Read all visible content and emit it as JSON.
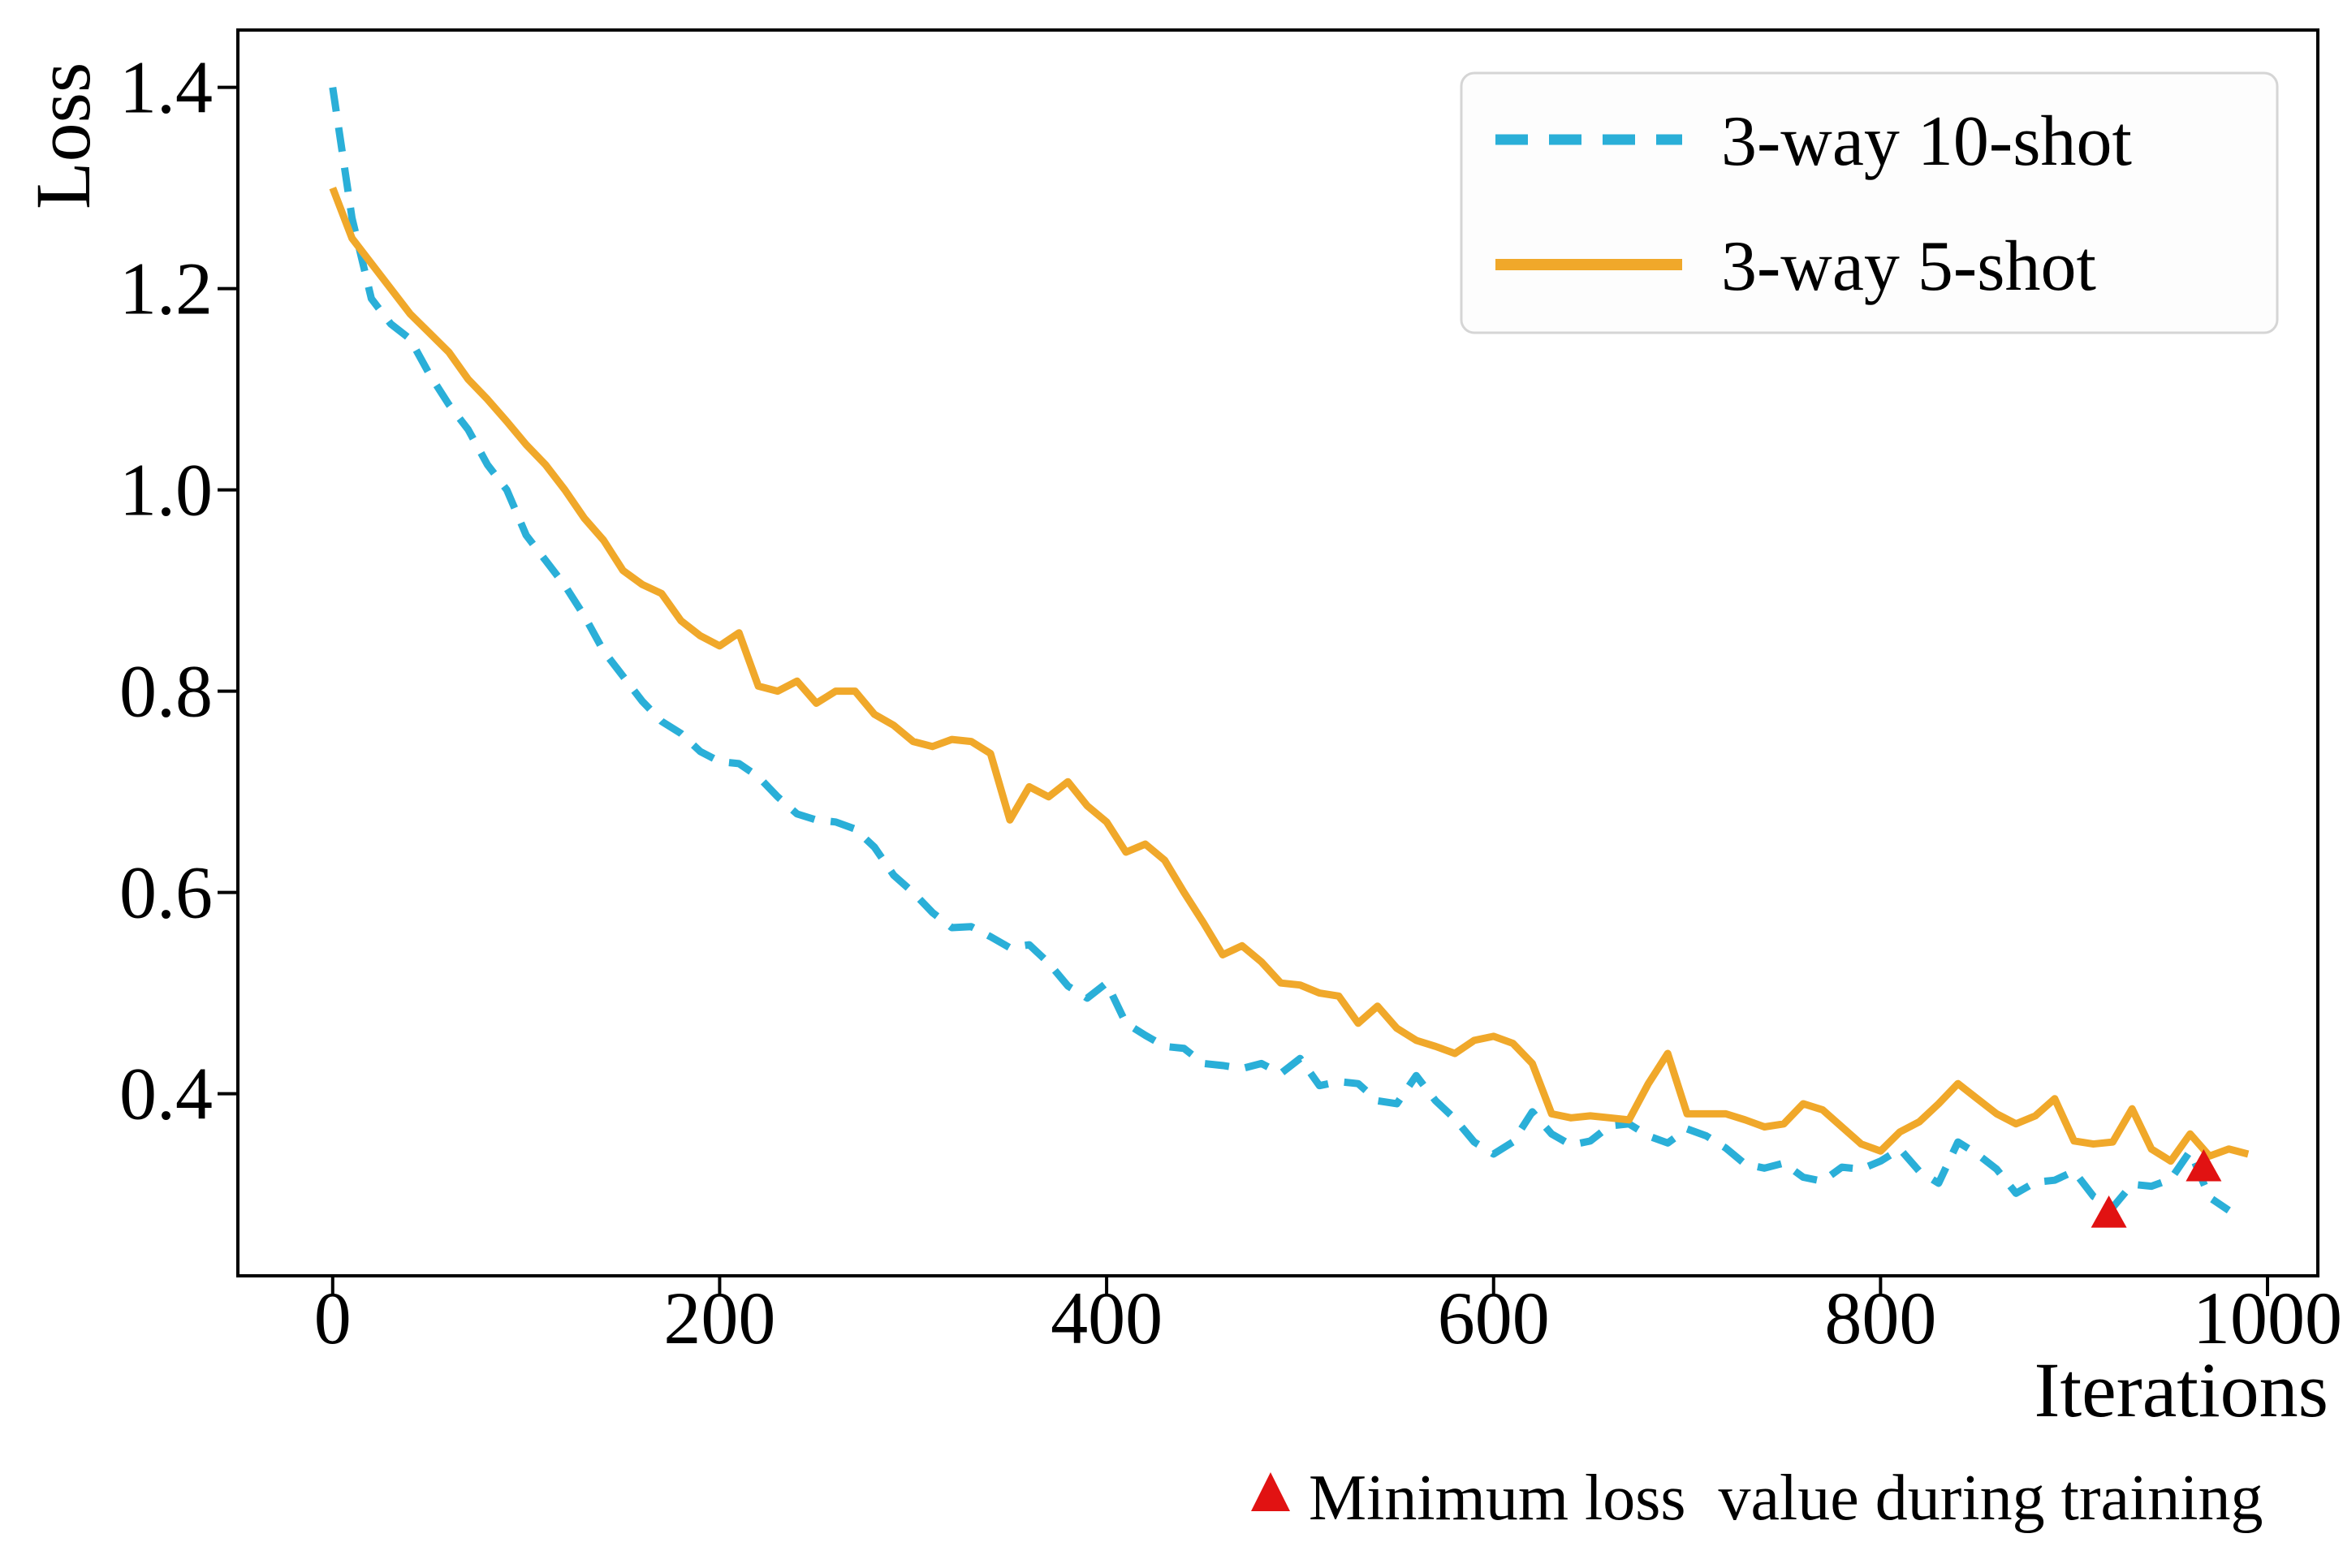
{
  "figure": {
    "background": "#ffffff",
    "frame_color": "#000000"
  },
  "chart_data": {
    "type": "line",
    "title": "",
    "xlabel": "Iterations",
    "ylabel": "Loss",
    "xlim": [
      -49,
      1026
    ],
    "ylim": [
      0.219,
      1.457
    ],
    "xticks": [
      0,
      200,
      400,
      600,
      800,
      1000
    ],
    "yticks": [
      0.4,
      0.6,
      0.8,
      1.0,
      1.2,
      1.4
    ],
    "grid": false,
    "legend_position": "upper right",
    "x": [
      0,
      10,
      20,
      30,
      40,
      50,
      60,
      70,
      80,
      90,
      100,
      110,
      120,
      130,
      140,
      150,
      160,
      170,
      180,
      190,
      200,
      210,
      220,
      230,
      240,
      250,
      260,
      270,
      280,
      290,
      300,
      310,
      320,
      330,
      340,
      350,
      360,
      370,
      380,
      390,
      400,
      410,
      420,
      430,
      440,
      450,
      460,
      470,
      480,
      490,
      500,
      510,
      520,
      530,
      540,
      550,
      560,
      570,
      580,
      590,
      600,
      610,
      620,
      630,
      640,
      650,
      660,
      670,
      680,
      690,
      700,
      710,
      720,
      730,
      740,
      750,
      760,
      770,
      780,
      790,
      800,
      810,
      820,
      830,
      840,
      850,
      860,
      870,
      880,
      890,
      900,
      910,
      920,
      930,
      940,
      950,
      960,
      970,
      980,
      990
    ],
    "series": [
      {
        "name": "3-way 10-shot",
        "color": "#2AAFD8",
        "style": "dashed",
        "values": [
          1.4,
          1.27,
          1.19,
          1.165,
          1.15,
          1.115,
          1.085,
          1.06,
          1.025,
          1.0,
          0.955,
          0.93,
          0.905,
          0.875,
          0.84,
          0.815,
          0.79,
          0.77,
          0.758,
          0.74,
          0.73,
          0.728,
          0.715,
          0.695,
          0.678,
          0.672,
          0.67,
          0.663,
          0.645,
          0.617,
          0.6,
          0.58,
          0.565,
          0.566,
          0.556,
          0.545,
          0.548,
          0.53,
          0.507,
          0.495,
          0.51,
          0.47,
          0.458,
          0.447,
          0.445,
          0.43,
          0.428,
          0.425,
          0.43,
          0.42,
          0.435,
          0.408,
          0.412,
          0.41,
          0.393,
          0.39,
          0.418,
          0.393,
          0.375,
          0.352,
          0.34,
          0.352,
          0.382,
          0.36,
          0.349,
          0.353,
          0.368,
          0.37,
          0.358,
          0.351,
          0.365,
          0.358,
          0.346,
          0.33,
          0.326,
          0.331,
          0.317,
          0.313,
          0.327,
          0.325,
          0.333,
          0.345,
          0.323,
          0.311,
          0.352,
          0.34,
          0.325,
          0.301,
          0.312,
          0.314,
          0.323,
          0.298,
          0.287,
          0.31,
          0.308,
          0.315,
          0.343,
          0.297,
          0.284,
          null
        ]
      },
      {
        "name": "3-way 5-shot",
        "color": "#F0A82A",
        "style": "solid",
        "values": [
          1.3,
          1.25,
          1.225,
          1.2,
          1.175,
          1.156,
          1.137,
          1.11,
          1.09,
          1.068,
          1.045,
          1.025,
          1.0,
          0.972,
          0.95,
          0.92,
          0.906,
          0.897,
          0.87,
          0.855,
          0.845,
          0.858,
          0.805,
          0.8,
          0.81,
          0.788,
          0.8,
          0.8,
          0.777,
          0.766,
          0.75,
          0.745,
          0.752,
          0.75,
          0.738,
          0.672,
          0.705,
          0.695,
          0.71,
          0.686,
          0.67,
          0.64,
          0.648,
          0.632,
          0.6,
          0.57,
          0.538,
          0.547,
          0.531,
          0.51,
          0.508,
          0.5,
          0.497,
          0.47,
          0.487,
          0.465,
          0.453,
          0.447,
          0.44,
          0.453,
          0.457,
          0.45,
          0.43,
          0.38,
          0.376,
          0.378,
          0.376,
          0.374,
          0.41,
          0.44,
          0.38,
          0.38,
          0.38,
          0.374,
          0.367,
          0.37,
          0.39,
          0.384,
          0.367,
          0.35,
          0.343,
          0.362,
          0.372,
          0.39,
          0.41,
          0.395,
          0.38,
          0.37,
          0.378,
          0.395,
          0.353,
          0.35,
          0.352,
          0.385,
          0.345,
          0.333,
          0.36,
          0.338,
          0.345,
          0.34
        ]
      }
    ],
    "min_markers": {
      "label": "Minimum loss  value during training",
      "color": "#E11212",
      "points": [
        {
          "series": "3-way 10-shot",
          "x": 918,
          "y": 0.282
        },
        {
          "series": "3-way 5-shot",
          "x": 967,
          "y": 0.328
        }
      ]
    },
    "legend": {
      "entries": [
        "3-way 10-shot",
        "3-way 5-shot"
      ]
    }
  }
}
